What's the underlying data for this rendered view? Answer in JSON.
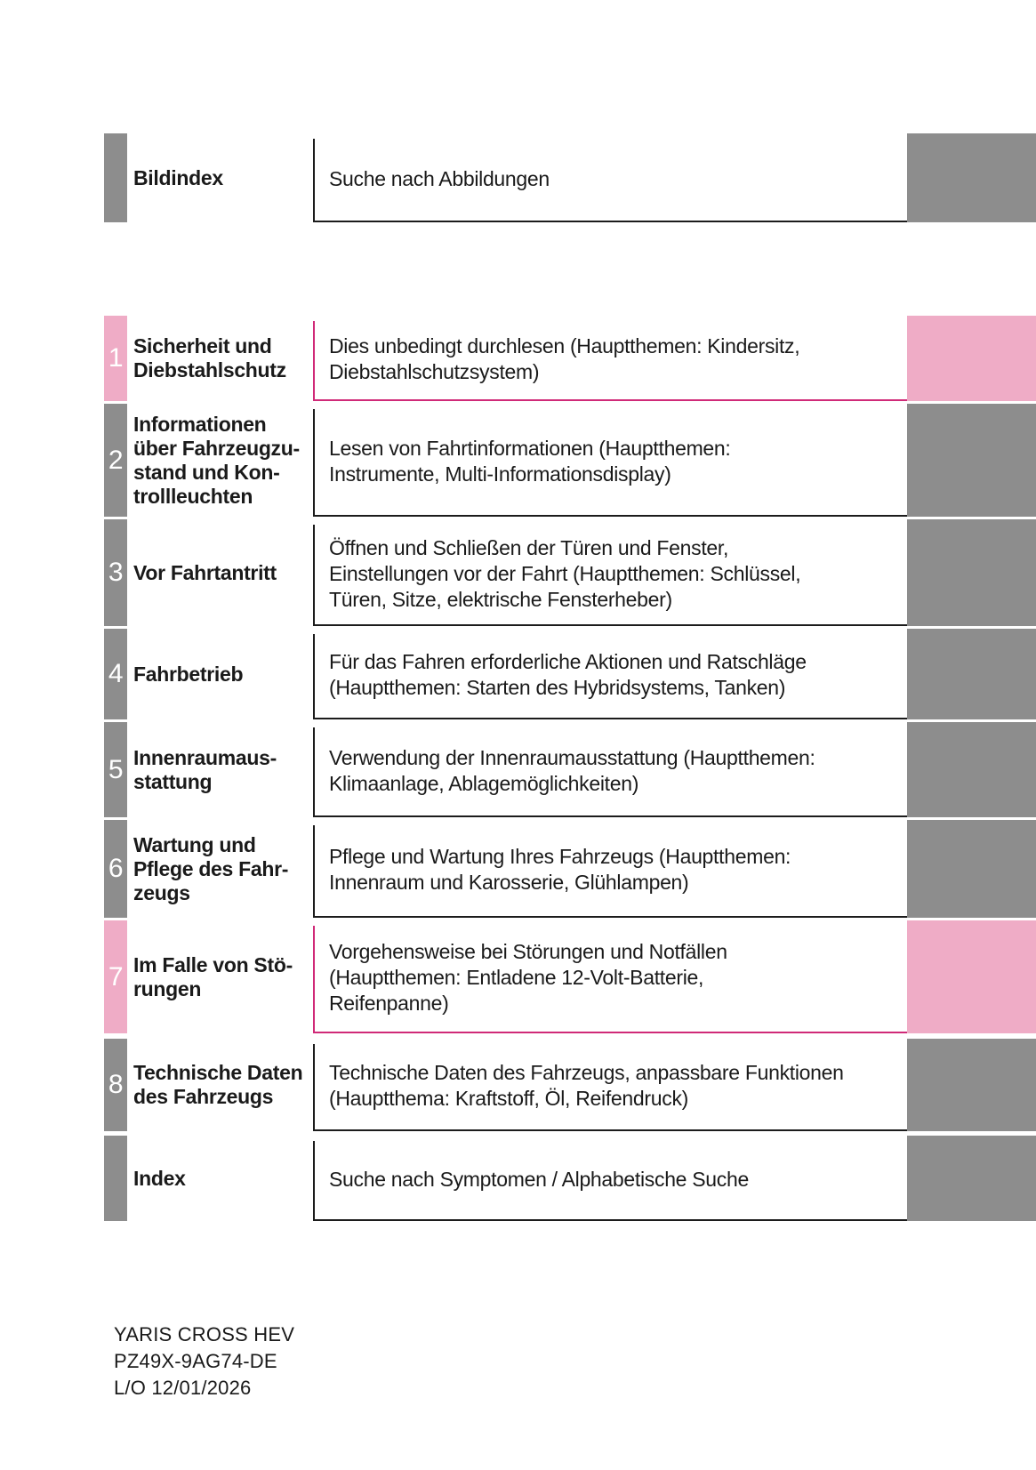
{
  "colors": {
    "gray_tab": "#8d8d8d",
    "pink_tab": "#efacc6",
    "pink_rule": "#d02a78",
    "dark_rule": "#1c1c1c",
    "text": "#1a1a1a"
  },
  "toc": {
    "rows": [
      {
        "number": "",
        "title": "Bildindex",
        "description": "Suche nach Abbildungen",
        "theme": "gray"
      },
      {
        "number": "1",
        "title": "Sicherheit und\nDiebstahlschutz",
        "description": "Dies unbedingt durchlesen (Hauptthemen: Kindersitz,\nDiebstahlschutzsystem)",
        "theme": "pink"
      },
      {
        "number": "2",
        "title": "Informationen\nüber Fahrzeugzu-\nstand und Kon-\ntrollleuchten",
        "description": "Lesen von Fahrtinformationen (Hauptthemen:\nInstrumente, Multi-Informationsdisplay)",
        "theme": "gray"
      },
      {
        "number": "3",
        "title": "Vor Fahrtantritt",
        "description": "Öffnen und Schließen der Türen und Fenster,\nEinstellungen vor der Fahrt (Hauptthemen: Schlüssel,\nTüren, Sitze, elektrische Fensterheber)",
        "theme": "gray"
      },
      {
        "number": "4",
        "title": "Fahrbetrieb",
        "description": "Für das Fahren erforderliche Aktionen und Ratschläge\n(Hauptthemen: Starten des Hybridsystems, Tanken)",
        "theme": "gray"
      },
      {
        "number": "5",
        "title": "Innenraumaus-\nstattung",
        "description": "Verwendung der Innenraumausstattung (Hauptthemen:\nKlimaanlage, Ablagemöglichkeiten)",
        "theme": "gray"
      },
      {
        "number": "6",
        "title": "Wartung und\nPflege des Fahr-\nzeugs",
        "description": "Pflege und Wartung Ihres Fahrzeugs (Hauptthemen:\nInnenraum und Karosserie, Glühlampen)",
        "theme": "gray"
      },
      {
        "number": "7",
        "title": "Im Falle von Stö-\nrungen",
        "description": "Vorgehensweise bei Störungen und Notfällen\n(Hauptthemen: Entladene 12-Volt-Batterie,\nReifenpanne)",
        "theme": "pink"
      },
      {
        "number": "8",
        "title": "Technische Daten\ndes Fahrzeugs",
        "description": "Technische Daten des Fahrzeugs, anpassbare Funktionen\n(Hauptthema: Kraftstoff, Öl, Reifendruck)",
        "theme": "gray"
      },
      {
        "number": "",
        "title": "Index",
        "description": "Suche nach Symptomen / Alphabetische Suche",
        "theme": "gray"
      }
    ]
  },
  "footer": {
    "line1": "YARIS CROSS HEV",
    "line2": "PZ49X-9AG74-DE",
    "line3": "L/O 12/01/2026"
  }
}
